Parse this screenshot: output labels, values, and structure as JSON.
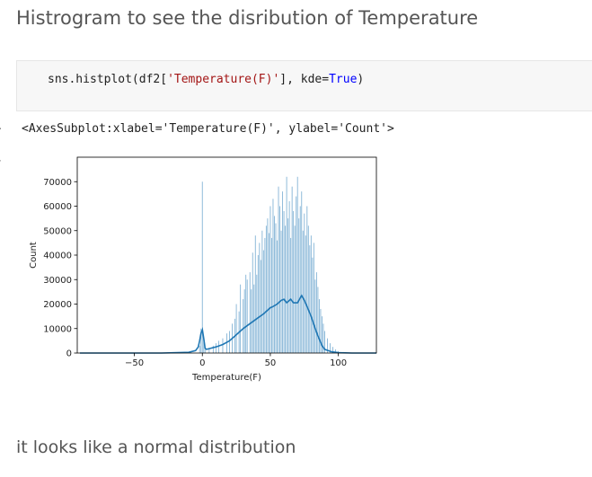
{
  "heading": "Histrogram to see the disribution of Temperature",
  "code": {
    "prefix": "sns.histplot(df2[",
    "string_literal": "'Temperature(F)'",
    "middle": "], kde=",
    "keyword": "True",
    "suffix": ")"
  },
  "output_repr": "<AxesSubplot:xlabel='Temperature(F)', ylabel='Count'>",
  "markdown_note": "it looks like a normal distribution",
  "chart_data": {
    "type": "bar",
    "xlabel": "Temperature(F)",
    "ylabel": "Count",
    "xlim": [
      -92,
      128
    ],
    "ylim": [
      0,
      80000
    ],
    "xticks": [
      -50,
      0,
      50,
      100
    ],
    "yticks": [
      0,
      10000,
      20000,
      30000,
      40000,
      50000,
      60000,
      70000
    ],
    "bar_color": "#1f77b4",
    "kde_color": "#1f77b4",
    "histogram": {
      "x": [
        -2,
        -1,
        0,
        1,
        2,
        5,
        8,
        10,
        12,
        15,
        18,
        20,
        22,
        24,
        25,
        27,
        28,
        30,
        31,
        32,
        33,
        35,
        36,
        37,
        38,
        39,
        40,
        41,
        42,
        43,
        44,
        45,
        46,
        47,
        48,
        49,
        50,
        51,
        52,
        53,
        54,
        55,
        56,
        57,
        58,
        59,
        60,
        61,
        62,
        63,
        64,
        65,
        66,
        67,
        68,
        69,
        70,
        71,
        72,
        73,
        74,
        75,
        76,
        77,
        78,
        79,
        80,
        81,
        82,
        83,
        84,
        85,
        86,
        87,
        88,
        89,
        90,
        92,
        94,
        96,
        98,
        100,
        105
      ],
      "y": [
        3000,
        10000,
        70000,
        6000,
        2000,
        2000,
        3000,
        4000,
        5000,
        6000,
        8000,
        9000,
        12000,
        14000,
        20000,
        17000,
        28000,
        22000,
        26000,
        32000,
        30000,
        33000,
        26000,
        41000,
        28000,
        48000,
        32000,
        40000,
        45000,
        38000,
        50000,
        42000,
        47000,
        52000,
        55000,
        49000,
        60000,
        47000,
        63000,
        56000,
        53000,
        46000,
        68000,
        60000,
        50000,
        66000,
        58000,
        52000,
        72000,
        55000,
        62000,
        47000,
        68000,
        58000,
        52000,
        64000,
        72000,
        55000,
        60000,
        66000,
        50000,
        57000,
        48000,
        60000,
        52000,
        44000,
        48000,
        39000,
        45000,
        30000,
        33000,
        27000,
        22000,
        18000,
        15000,
        12000,
        9000,
        6000,
        4000,
        2500,
        1500,
        800,
        300
      ]
    },
    "kde": {
      "x": [
        -90,
        -60,
        -30,
        -10,
        -5,
        -3,
        -2,
        -1,
        0,
        1,
        2,
        3,
        5,
        10,
        15,
        20,
        25,
        30,
        35,
        40,
        45,
        50,
        52,
        55,
        58,
        60,
        62,
        65,
        67,
        70,
        72,
        73,
        75,
        77,
        80,
        83,
        85,
        88,
        90,
        95,
        100,
        110,
        128
      ],
      "y": [
        0,
        0,
        0,
        300,
        1000,
        2500,
        5000,
        8000,
        9500,
        6000,
        2000,
        1500,
        1800,
        2500,
        3500,
        5000,
        7500,
        10000,
        12000,
        14000,
        16000,
        18500,
        19000,
        20000,
        21500,
        22000,
        20500,
        22000,
        20500,
        20500,
        22500,
        23500,
        21500,
        19000,
        15000,
        10000,
        7000,
        3000,
        1500,
        500,
        150,
        0,
        0
      ]
    }
  }
}
